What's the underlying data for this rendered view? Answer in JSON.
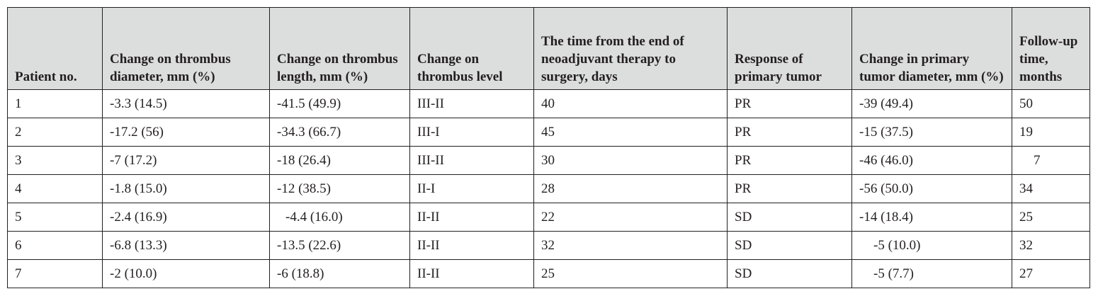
{
  "table": {
    "headers": [
      "Patient no.",
      "Change on thrombus diameter, mm (%)",
      "Change on thrombus length, mm (%)",
      "Change on thrombus level",
      "The time from the end of neoadjuvant therapy to surgery, days",
      "Response of primary tumor",
      "Change in primary tumor diameter, mm (%)",
      "Follow-up time, months"
    ],
    "rows": [
      [
        "1",
        "-3.3 (14.5)",
        "-41.5 (49.9)",
        "III-II",
        "40",
        "PR",
        "-39 (49.4)",
        "50"
      ],
      [
        "2",
        "-17.2 (56)",
        "-34.3 (66.7)",
        "III-I",
        "45",
        "PR",
        "-15 (37.5)",
        "19"
      ],
      [
        "3",
        "-7 (17.2)",
        "-18 (26.4)",
        "III-II",
        "30",
        "PR",
        "-46 (46.0)",
        "7"
      ],
      [
        "4",
        "-1.8 (15.0)",
        "-12 (38.5)",
        "II-I",
        "28",
        "PR",
        "-56 (50.0)",
        "34"
      ],
      [
        "5",
        "-2.4 (16.9)",
        "-4.4 (16.0)",
        "II-II",
        "22",
        "SD",
        "-14 (18.4)",
        "25"
      ],
      [
        "6",
        "-6.8 (13.3)",
        "-13.5 (22.6)",
        "II-II",
        "32",
        "SD",
        "-5 (10.0)",
        "32"
      ],
      [
        "7",
        "-2 (10.0)",
        "-6 (18.8)",
        "II-II",
        "25",
        "SD",
        "-5 (7.7)",
        "27"
      ]
    ]
  }
}
